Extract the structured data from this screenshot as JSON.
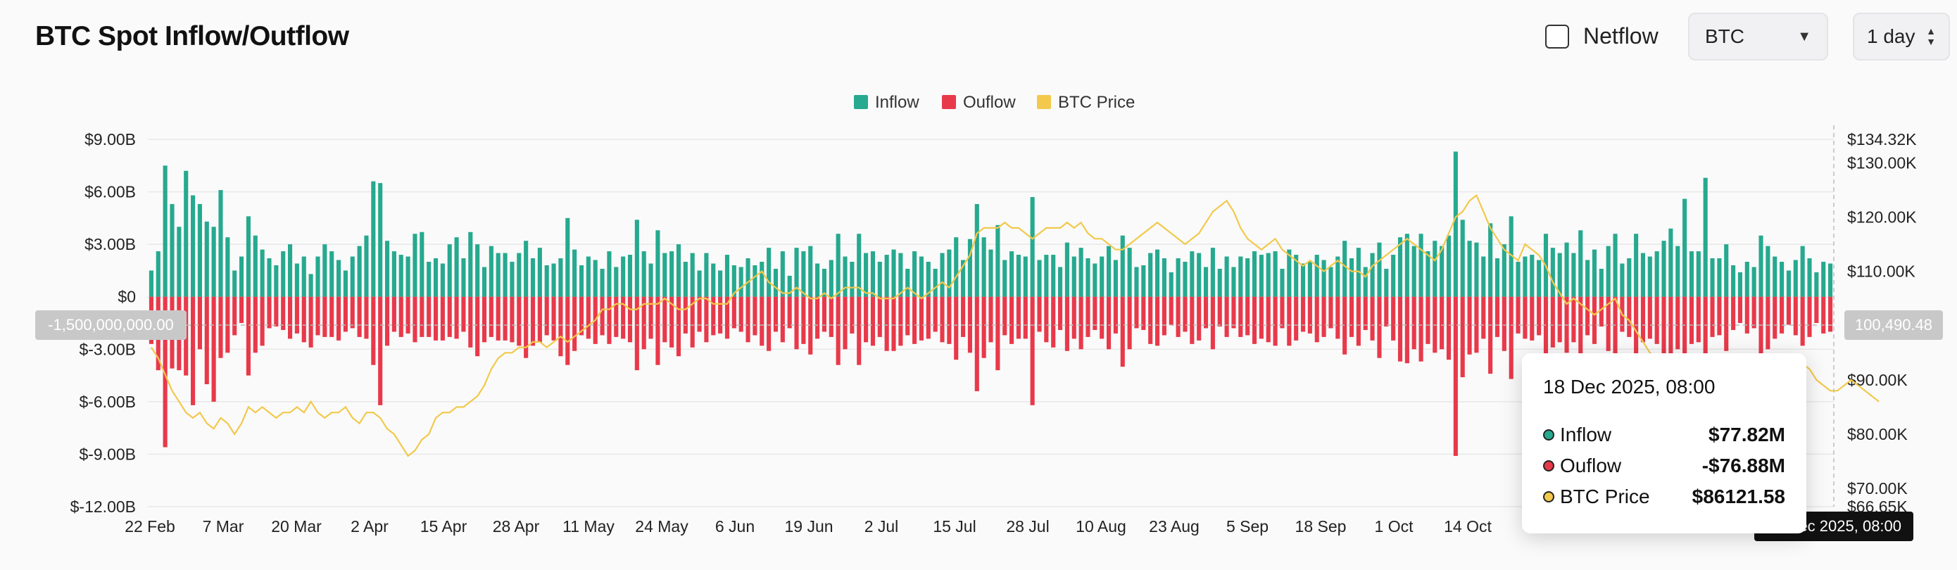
{
  "header": {
    "title": "BTC Spot Inflow/Outflow",
    "netflow_label": "Netflow",
    "coin_select": "BTC",
    "range_select": "1 day"
  },
  "colors": {
    "inflow": "#26a98f",
    "outflow": "#e8394a",
    "price": "#f2c94c",
    "grid": "#e8e8e8"
  },
  "tooltip": {
    "date": "18 Dec 2025, 08:00",
    "rows": [
      {
        "label": "Inflow",
        "value": "$77.82M",
        "color": "#26a98f"
      },
      {
        "label": "Ouflow",
        "value": "-$76.88M",
        "color": "#e8394a"
      },
      {
        "label": "BTC Price",
        "value": "$86121.58",
        "color": "#f2c94c"
      }
    ]
  },
  "crosshair": {
    "left_value": "-1,500,000,000.00",
    "right_value": "100,490.48",
    "date_value": "18 Dec 2025, 08:00"
  },
  "chart_data": {
    "type": "bar",
    "legend": {
      "position": "top-center",
      "entries": [
        "Inflow",
        "Ouflow",
        "BTC Price"
      ]
    },
    "y_left": {
      "ticks": [
        "$9.00B",
        "$6.00B",
        "$3.00B",
        "$0",
        "$-3.00B",
        "$-6.00B",
        "$-9.00B",
        "$-12.00B"
      ],
      "range": [
        -12,
        9
      ],
      "unit": "B USD"
    },
    "y_right": {
      "ticks": [
        "$134.32K",
        "$130.00K",
        "$120.00K",
        "$110.00K",
        "$90.00K",
        "$80.00K",
        "$70.00K",
        "$66.65K"
      ],
      "range": [
        66.65,
        134.32
      ],
      "unit": "K USD"
    },
    "x_ticks": [
      "22 Feb",
      "7 Mar",
      "20 Mar",
      "2 Apr",
      "15 Apr",
      "28 Apr",
      "11 May",
      "24 May",
      "6 Jun",
      "19 Jun",
      "2 Jul",
      "15 Jul",
      "28 Jul",
      "10 Aug",
      "23 Aug",
      "5 Sep",
      "18 Sep",
      "1 Oct",
      "14 Oct"
    ],
    "grid": true,
    "series": [
      {
        "name": "Inflow",
        "values": [
          1.5,
          2.6,
          7.5,
          5.3,
          4.0,
          7.2,
          5.8,
          5.3,
          4.3,
          4.0,
          6.1,
          3.4,
          1.5,
          2.3,
          4.6,
          3.5,
          2.7,
          2.2,
          1.8,
          2.6,
          3.0,
          1.9,
          2.3,
          1.3,
          2.3,
          3.0,
          2.6,
          2.1,
          1.5,
          2.3,
          2.9,
          3.5,
          6.6,
          6.5,
          3.2,
          2.6,
          2.4,
          2.3,
          3.6,
          3.7,
          2.0,
          2.2,
          1.9,
          3.0,
          3.4,
          2.2,
          3.7,
          3.0,
          1.7,
          2.9,
          2.5,
          2.5,
          2.0,
          2.5,
          3.2,
          2.2,
          2.8,
          1.8,
          1.9,
          2.2,
          4.5,
          2.7,
          1.8,
          2.3,
          2.1,
          1.6,
          2.6,
          1.7,
          2.3,
          2.4,
          4.4,
          2.6,
          1.9,
          3.8,
          2.5,
          2.6,
          3.0,
          2.0,
          2.5,
          1.5,
          2.5,
          1.9,
          1.5,
          2.4,
          1.8,
          1.7,
          2.2,
          1.8,
          2.0,
          2.8,
          1.6,
          2.6,
          1.2,
          2.8,
          2.6,
          2.9,
          1.9,
          1.6,
          2.1,
          3.6,
          2.3,
          2.0,
          3.6,
          2.5,
          2.6,
          2.0,
          2.4,
          2.7,
          2.5,
          1.6,
          2.6,
          2.3,
          2.0,
          1.6,
          2.5,
          2.7,
          3.4,
          2.1,
          3.3,
          5.3,
          3.4,
          2.7,
          4.1,
          2.1,
          2.6,
          2.4,
          2.3,
          5.7,
          2.1,
          2.4,
          2.4,
          1.7,
          3.1,
          2.3,
          2.8,
          2.2,
          1.9,
          2.3,
          2.9,
          2.1,
          3.5,
          2.8,
          1.7,
          1.8,
          2.5,
          2.7,
          2.2,
          1.4,
          2.2,
          2.0,
          2.6,
          2.5,
          1.7,
          2.8,
          1.6,
          2.3,
          1.7,
          2.3,
          2.2,
          2.6,
          2.4,
          2.5,
          2.6,
          1.6,
          2.7,
          2.4,
          1.9,
          2.0,
          2.4,
          2.1,
          1.7,
          2.3,
          3.2,
          2.2,
          2.8,
          1.7,
          2.5,
          3.1,
          1.6,
          2.4,
          3.4,
          3.6,
          2.9,
          3.6,
          2.6,
          3.2,
          2.9,
          3.5,
          8.3,
          4.4,
          3.2,
          3.1,
          2.3,
          4.2,
          2.2,
          3.0,
          4.6,
          2.0,
          2.3,
          2.4,
          2.1,
          3.6,
          2.8,
          2.5,
          3.1,
          2.5,
          3.8,
          2.1,
          2.7,
          1.6,
          2.9,
          3.6,
          1.9,
          2.2,
          3.6,
          2.5,
          2.3,
          2.6,
          3.2,
          3.9,
          2.9,
          5.6,
          2.6,
          2.6,
          6.8,
          2.2,
          2.2,
          3.0,
          1.8,
          1.4,
          2.0,
          1.7,
          3.5,
          2.9,
          2.3,
          2.0,
          1.5,
          2.1,
          2.9,
          2.2,
          1.4,
          2.0,
          1.9
        ],
        "note": "billions USD, one per day; approximated from gridlines"
      },
      {
        "name": "Ouflow",
        "values": [
          -2.7,
          -4.2,
          -8.6,
          -4.1,
          -4.2,
          -4.5,
          -6.2,
          -3.0,
          -5.0,
          -6.0,
          -3.5,
          -3.2,
          -2.2,
          -1.5,
          -4.5,
          -3.2,
          -2.8,
          -1.8,
          -1.7,
          -1.9,
          -2.4,
          -2.1,
          -2.6,
          -2.9,
          -2.2,
          -2.3,
          -2.3,
          -2.5,
          -2.0,
          -1.8,
          -2.3,
          -2.4,
          -3.9,
          -6.2,
          -2.8,
          -2.0,
          -2.3,
          -2.1,
          -2.6,
          -2.3,
          -2.3,
          -2.5,
          -2.5,
          -2.3,
          -2.4,
          -2.0,
          -2.9,
          -3.4,
          -2.6,
          -2.3,
          -2.5,
          -2.5,
          -2.6,
          -2.8,
          -3.5,
          -2.8,
          -2.6,
          -2.2,
          -2.5,
          -3.4,
          -3.9,
          -3.1,
          -2.2,
          -2.4,
          -2.7,
          -2.2,
          -2.7,
          -2.3,
          -2.4,
          -2.6,
          -4.2,
          -3.0,
          -2.4,
          -3.9,
          -2.6,
          -2.9,
          -3.4,
          -2.1,
          -2.9,
          -2.0,
          -2.6,
          -2.2,
          -2.1,
          -2.4,
          -1.8,
          -2.0,
          -2.6,
          -2.2,
          -2.8,
          -3.1,
          -2.0,
          -2.6,
          -1.8,
          -3.0,
          -2.7,
          -3.3,
          -2.4,
          -2.0,
          -2.3,
          -3.9,
          -3.0,
          -2.1,
          -3.9,
          -2.6,
          -2.8,
          -2.3,
          -3.1,
          -3.1,
          -2.8,
          -2.2,
          -2.7,
          -2.5,
          -2.4,
          -2.0,
          -2.6,
          -2.7,
          -3.6,
          -2.3,
          -3.2,
          -5.4,
          -3.5,
          -2.6,
          -4.2,
          -2.2,
          -2.7,
          -2.4,
          -2.4,
          -6.2,
          -2.0,
          -2.6,
          -2.9,
          -1.9,
          -3.1,
          -2.4,
          -3.0,
          -2.3,
          -1.9,
          -2.4,
          -3.0,
          -2.1,
          -4.0,
          -3.0,
          -1.8,
          -1.9,
          -2.7,
          -2.8,
          -2.2,
          -1.6,
          -2.3,
          -2.0,
          -2.7,
          -2.5,
          -1.8,
          -3.0,
          -1.7,
          -2.3,
          -1.8,
          -2.3,
          -2.2,
          -2.7,
          -2.4,
          -2.6,
          -2.8,
          -1.8,
          -2.8,
          -2.5,
          -2.0,
          -2.1,
          -2.6,
          -2.3,
          -1.8,
          -2.4,
          -3.3,
          -2.3,
          -2.8,
          -1.9,
          -2.5,
          -3.5,
          -1.7,
          -2.5,
          -3.7,
          -3.8,
          -3.0,
          -3.7,
          -2.7,
          -3.2,
          -3.0,
          -3.6,
          -9.1,
          -4.6,
          -3.3,
          -3.2,
          -2.4,
          -4.4,
          -2.3,
          -3.1,
          -4.7,
          -2.1,
          -2.4,
          -2.5,
          -2.2,
          -3.8,
          -2.9,
          -2.6,
          -3.2,
          -2.6,
          -3.9,
          -2.2,
          -2.7,
          -1.7,
          -3.1,
          -3.7,
          -2.0,
          -2.3,
          -3.7,
          -2.6,
          -2.4,
          -2.7,
          -3.3,
          -4.0,
          -3.0,
          -4.5,
          -2.7,
          -2.6,
          -4.3,
          -2.3,
          -2.2,
          -3.1,
          -1.9,
          -1.5,
          -2.1,
          -1.8,
          -3.4,
          -3.0,
          -2.4,
          -2.1,
          -1.6,
          -2.2,
          -2.8,
          -2.3,
          -1.5,
          -2.1,
          -2.0
        ],
        "note": "billions USD, one per day; approximated from gridlines"
      },
      {
        "name": "BTC Price",
        "values": [
          96,
          94,
          91,
          88,
          86,
          84,
          83,
          84,
          82,
          81,
          83,
          82,
          80,
          82,
          85,
          84,
          85,
          84,
          83,
          84,
          84,
          85,
          84,
          86,
          84,
          83,
          84,
          84,
          85,
          83,
          82,
          84,
          84,
          83,
          81,
          80,
          78,
          76,
          77,
          79,
          80,
          83,
          84,
          84,
          85,
          85,
          86,
          87,
          89,
          92,
          94,
          95,
          95,
          96,
          96,
          97,
          97,
          96,
          97,
          98,
          97,
          98,
          99,
          100,
          101,
          103,
          103,
          104,
          104,
          103,
          103,
          104,
          104,
          104,
          105,
          104,
          103,
          103,
          104,
          105,
          105,
          104,
          104,
          104,
          106,
          107,
          108,
          109,
          110,
          108,
          107,
          106,
          106,
          107,
          106,
          105,
          105,
          106,
          105,
          106,
          107,
          107,
          107,
          106,
          106,
          105,
          105,
          105,
          106,
          107,
          106,
          105,
          106,
          107,
          108,
          107,
          109,
          111,
          113,
          117,
          118,
          118,
          118,
          119,
          118,
          118,
          117,
          116,
          117,
          118,
          118,
          118,
          119,
          118,
          119,
          117,
          116,
          116,
          115,
          114,
          114,
          115,
          116,
          117,
          118,
          119,
          118,
          117,
          116,
          115,
          116,
          117,
          119,
          121,
          122,
          123,
          121,
          118,
          116,
          115,
          114,
          115,
          116,
          114,
          113,
          112,
          111,
          112,
          111,
          110,
          111,
          112,
          111,
          110,
          110,
          109,
          111,
          112,
          113,
          114,
          115,
          116,
          115,
          114,
          113,
          112,
          114,
          117,
          120,
          121,
          123,
          124,
          121,
          118,
          116,
          114,
          113,
          112,
          115,
          114,
          113,
          111,
          108,
          106,
          104,
          105,
          104,
          103,
          102,
          103,
          104,
          105,
          102,
          101,
          99,
          97,
          95,
          94,
          92,
          91,
          91,
          92,
          91,
          90,
          89,
          92,
          93,
          94,
          92,
          91,
          90,
          89,
          88,
          88,
          89,
          88,
          90,
          92,
          93,
          92,
          90,
          89,
          88,
          88,
          89,
          90,
          89,
          88,
          87,
          86
        ],
        "note": "thousands USD, one per day; approximated from right axis"
      }
    ]
  }
}
